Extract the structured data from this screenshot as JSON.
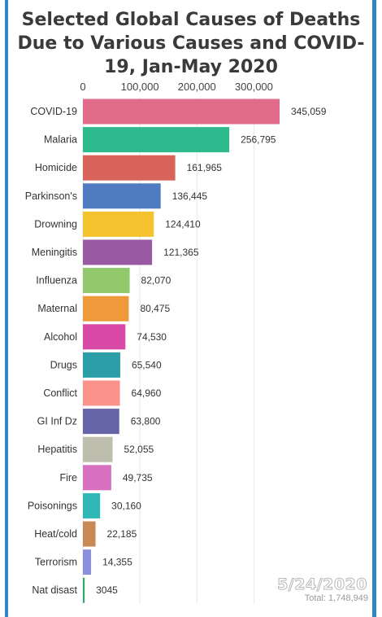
{
  "chart_data": {
    "type": "bar",
    "orientation": "horizontal",
    "title": "Selected Global Causes of Deaths Due to Various Causes and COVID-19, Jan-May 2020",
    "xlim": [
      0,
      350000
    ],
    "xticks": [
      0,
      100000,
      200000,
      300000
    ],
    "xtick_labels": [
      "0",
      "100,000",
      "200,000",
      "300,000"
    ],
    "xaxis_position": "top",
    "grid": true,
    "categories": [
      "COVID-19",
      "Malaria",
      "Homicide",
      "Parkinson's",
      "Drowning",
      "Meningitis",
      "Influenza",
      "Maternal",
      "Alcohol",
      "Drugs",
      "Conflict",
      "GI Inf Dz",
      "Hepatitis",
      "Fire",
      "Poisonings",
      "Heat/cold",
      "Terrorism",
      "Nat disast"
    ],
    "values": [
      345059,
      256795,
      161965,
      136445,
      124410,
      121365,
      82070,
      80475,
      74530,
      65540,
      64960,
      63800,
      52055,
      49735,
      30160,
      22185,
      14355,
      3045
    ],
    "value_labels": [
      "345,059",
      "256,795",
      "161,965",
      "136,445",
      "124,410",
      "121,365",
      "82,070",
      "80,475",
      "74,530",
      "65,540",
      "64,960",
      "63,800",
      "52,055",
      "49,735",
      "30,160",
      "22,185",
      "14,355",
      "3045"
    ],
    "colors": [
      "#e06c89",
      "#2fba8d",
      "#d9625b",
      "#4f7bc0",
      "#f4c32e",
      "#9a5aa3",
      "#92c96c",
      "#ee9a3a",
      "#d94aa6",
      "#2b9ea7",
      "#fb918b",
      "#6664a8",
      "#bdbeae",
      "#d871bf",
      "#2fb7b6",
      "#c78a55",
      "#8b8fdc",
      "#35a66d"
    ],
    "date": "5/24/2020",
    "total": "Total: 1,748,949"
  }
}
